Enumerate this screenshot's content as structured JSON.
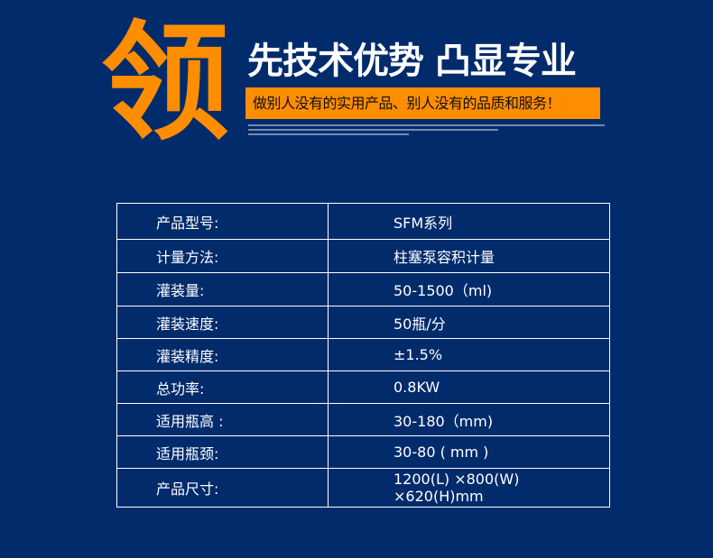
{
  "banner": {
    "big_char": "领",
    "title": "先技术优势 凸显专业",
    "slogan": "做别人没有的实用产品、别人没有的品质和服务！",
    "brand_color": "#ff8d00",
    "background": "#022b6c"
  },
  "specs": [
    {
      "label": "产品型号:",
      "value": "SFM系列"
    },
    {
      "label": "计量方法:",
      "value": "柱塞泵容积计量"
    },
    {
      "label": "灌装量:",
      "value": "50-1500（ml)"
    },
    {
      "label": "灌装速度:",
      "value": "50瓶/分"
    },
    {
      "label": "灌装精度:",
      "value": "±1.5%"
    },
    {
      "label": "总功率:",
      "value": "0.8KW"
    },
    {
      "label": "适用瓶高 :",
      "value": "30-180（mm)"
    },
    {
      "label": "适用瓶颈:",
      "value": "30-80 ( mm )"
    },
    {
      "label": "产品尺寸:",
      "value": "1200(L) ×800(W) ×620(H)mm"
    }
  ]
}
